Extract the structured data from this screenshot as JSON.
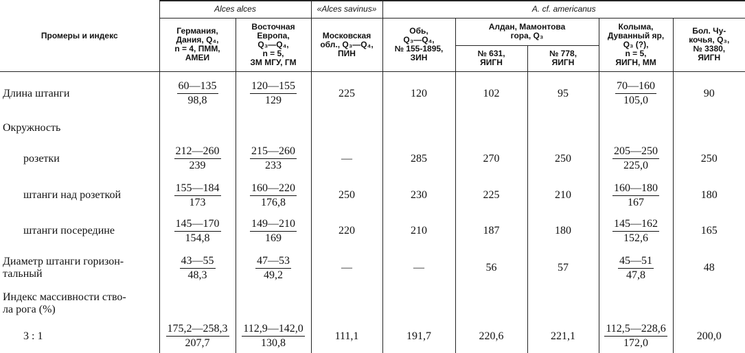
{
  "table": {
    "header": {
      "row_label": "Промеры и индекс",
      "groups": [
        "Alces alces",
        "«Alces savinus»",
        "A. cf. americanus"
      ],
      "subgroup": "Алдан, Мамонтова\nгора, Q₃",
      "columns": [
        "Германия,\nДания, Q₄,\nn = 4, ПММ,\nАМЕИ",
        "Восточная\nЕвропа,\nQ₃—Q₄,\nn = 5,\nЗМ МГУ, ГМ",
        "Московская\nобл., Q₃—Q₄,\nПИН",
        "Обь,\nQ₃—Q₄,\n№ 155-1895,\nЗИН",
        "№ 631,\nЯИГН",
        "№ 778,\nЯИГН",
        "Колыма,\nДуванный яр,\nQ₃ (?),\nn = 5,\nЯИГН, ММ",
        "Бол. Чу-\nкочья, Q₃,\n№ 3380,\nЯИГН"
      ]
    },
    "rows": [
      {
        "label": "Длина штанги",
        "cells": [
          {
            "top": "60—135",
            "bottom": "98,8"
          },
          {
            "top": "120—155",
            "bottom": "129"
          },
          "225",
          "120",
          "102",
          "95",
          {
            "top": "70—160",
            "bottom": "105,0"
          },
          "90"
        ]
      },
      {
        "label": "Окружность"
      },
      {
        "label": "розетки",
        "cells": [
          {
            "top": "212—260",
            "bottom": "239"
          },
          {
            "top": "215—260",
            "bottom": "233"
          },
          "—",
          "285",
          "270",
          "250",
          {
            "top": "205—250",
            "bottom": "225,0"
          },
          "250"
        ]
      },
      {
        "label": "штанги над розеткой",
        "cells": [
          {
            "top": "155—184",
            "bottom": "173"
          },
          {
            "top": "160—220",
            "bottom": "176,8"
          },
          "250",
          "230",
          "225",
          "210",
          {
            "top": "160—180",
            "bottom": "167"
          },
          "180"
        ]
      },
      {
        "label": "штанги посередине",
        "cells": [
          {
            "top": "145—170",
            "bottom": "154,8"
          },
          {
            "top": "149—210",
            "bottom": "169"
          },
          "220",
          "210",
          "187",
          "180",
          {
            "top": "145—162",
            "bottom": "152,6"
          },
          "165"
        ]
      },
      {
        "label": "Диаметр штанги горизон-\nтальный",
        "cells": [
          {
            "top": "43—55",
            "bottom": "48,3"
          },
          {
            "top": "47—53",
            "bottom": "49,2"
          },
          "—",
          "—",
          "56",
          "57",
          {
            "top": "45—51",
            "bottom": "47,8"
          },
          "48"
        ]
      },
      {
        "label": "Индекс массивности ство-\nла рога (%)"
      },
      {
        "label": "3 : 1",
        "cells": [
          {
            "top": "175,2—258,3",
            "bottom": "207,7"
          },
          {
            "top": "112,9—142,0",
            "bottom": "130,8"
          },
          "111,1",
          "191,7",
          "220,6",
          "221,1",
          {
            "top": "112,5—228,6",
            "bottom": "172,0"
          },
          "200,0"
        ]
      }
    ]
  }
}
